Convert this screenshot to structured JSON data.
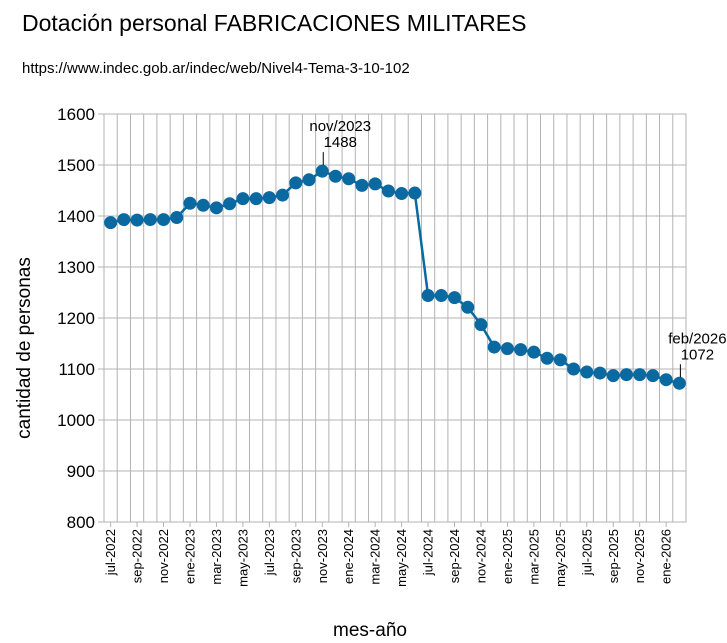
{
  "chart_data": {
    "type": "line",
    "title": "Dotación personal FABRICACIONES MILITARES",
    "subtitle": "https://www.indec.gob.ar/indec/web/Nivel4-Tema-3-10-102",
    "xlabel": "mes-año",
    "ylabel": "cantidad de personas",
    "ylim": [
      800,
      1600
    ],
    "yticks": [
      800,
      900,
      1000,
      1100,
      1200,
      1300,
      1400,
      1500,
      1600
    ],
    "grid": true,
    "x": [
      "jul-2022",
      "ago-2022",
      "sep-2022",
      "oct-2022",
      "nov-2022",
      "dic-2022",
      "ene-2023",
      "feb-2023",
      "mar-2023",
      "abr-2023",
      "may-2023",
      "jun-2023",
      "jul-2023",
      "ago-2023",
      "sep-2023",
      "oct-2023",
      "nov-2023",
      "dic-2023",
      "ene-2024",
      "feb-2024",
      "mar-2024",
      "abr-2024",
      "may-2024",
      "jun-2024",
      "jul-2024",
      "ago-2024",
      "sep-2024",
      "oct-2024",
      "nov-2024",
      "dic-2024",
      "ene-2025",
      "feb-2025",
      "mar-2025",
      "abr-2025",
      "may-2025",
      "jun-2025",
      "jul-2025",
      "ago-2025",
      "sep-2025",
      "oct-2025",
      "nov-2025",
      "dic-2025",
      "ene-2026",
      "feb-2026"
    ],
    "xtick_labels": [
      "jul-2022",
      "sep-2022",
      "nov-2022",
      "ene-2023",
      "mar-2023",
      "may-2023",
      "jul-2023",
      "sep-2023",
      "nov-2023",
      "ene-2024",
      "mar-2024",
      "may-2024",
      "jul-2024",
      "sep-2024",
      "nov-2024",
      "ene-2025",
      "mar-2025",
      "may-2025",
      "jul-2025",
      "sep-2025",
      "nov-2025",
      "ene-2026"
    ],
    "series": [
      {
        "values": [
          1387,
          1393,
          1392,
          1393,
          1393,
          1397,
          1425,
          1421,
          1416,
          1424,
          1434,
          1434,
          1436,
          1441,
          1465,
          1471,
          1488,
          1478,
          1473,
          1460,
          1463,
          1449,
          1444,
          1445,
          1244,
          1244,
          1240,
          1221,
          1187,
          1143,
          1140,
          1138,
          1133,
          1121,
          1118,
          1100,
          1094,
          1092,
          1087,
          1089,
          1089,
          1087,
          1079,
          1072
        ],
        "color": "#0a69a0"
      }
    ],
    "annotations": [
      {
        "index": 16,
        "label": "nov/2023",
        "value": "1488"
      },
      {
        "index": 43,
        "label": "feb/2026",
        "value": "1072"
      }
    ]
  }
}
